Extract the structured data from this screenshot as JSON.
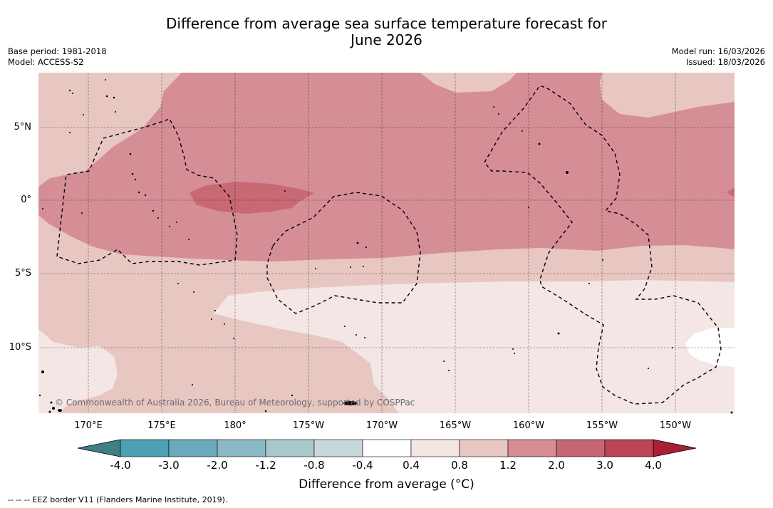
{
  "title_line1": "Difference from average sea surface temperature forecast for",
  "title_line2": "June 2026",
  "meta": {
    "base_period": "Base period: 1981-2018",
    "model": "Model: ACCESS-S2",
    "model_run": "Model run: 16/03/2026",
    "issued": "Issued: 18/03/2026"
  },
  "axes": {
    "lon_ticks": [
      "170°E",
      "175°E",
      "180°",
      "175°W",
      "170°W",
      "165°W",
      "160°W",
      "155°W",
      "150°W"
    ],
    "lat_ticks": [
      "5°N",
      "0°",
      "5°S",
      "10°S"
    ]
  },
  "copyright": "© Commonwealth of Australia 2026, Bureau of Meteorology, supported by COSPPac",
  "colorbar": {
    "labels": [
      "-4.0",
      "-3.0",
      "-2.0",
      "-1.2",
      "-0.8",
      "-0.4",
      "0.4",
      "0.8",
      "1.2",
      "2.0",
      "3.0",
      "4.0"
    ],
    "colors": [
      "#3e7f86",
      "#4ba0b3",
      "#6aaabb",
      "#8ab8c4",
      "#a8c8cc",
      "#c8d7da",
      "#ffffff",
      "#f4e6e4",
      "#e8c7c2",
      "#d48e94",
      "#c56772",
      "#bd4454",
      "#a81f36"
    ],
    "title": "Difference from average (°C)"
  },
  "legend_footer": "--  --  -- EEZ border V11 (Flanders Marine Institute, 2019).",
  "fill_colors": {
    "c08_12": "#e8c7c2",
    "c04_08": "#f4e6e4",
    "c12_20": "#d68e96",
    "c20_30": "#c86974",
    "c00": "#ffffff"
  }
}
